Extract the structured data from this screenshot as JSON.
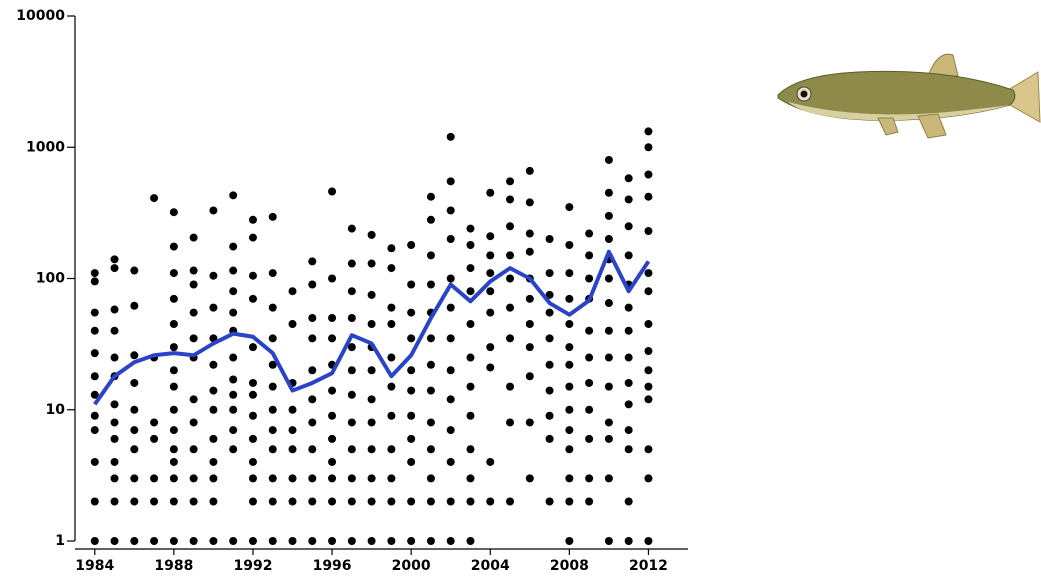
{
  "chart_data": {
    "type": "scatter",
    "ylog": true,
    "point_color": "#000000",
    "xlim": [
      1983,
      2014
    ],
    "xticks": [
      1984,
      1988,
      1992,
      1996,
      2000,
      2004,
      2008,
      2012
    ],
    "ylim": [
      1,
      10000
    ],
    "yticks": [
      1,
      10,
      100,
      1000,
      10000
    ],
    "points": [
      {
        "x": 1984,
        "values": [
          1,
          2,
          4,
          7,
          9,
          13,
          18,
          27,
          40,
          55,
          95,
          110
        ]
      },
      {
        "x": 1985,
        "values": [
          1,
          2,
          3,
          4,
          6,
          8,
          11,
          18,
          25,
          40,
          58,
          120,
          140
        ]
      },
      {
        "x": 1986,
        "values": [
          1,
          2,
          3,
          5,
          7,
          10,
          16,
          26,
          62,
          115
        ]
      },
      {
        "x": 1987,
        "values": [
          1,
          2,
          3,
          6,
          8,
          25,
          410
        ]
      },
      {
        "x": 1988,
        "values": [
          1,
          2,
          3,
          4,
          5,
          7,
          10,
          15,
          20,
          30,
          45,
          70,
          110,
          175,
          320
        ]
      },
      {
        "x": 1989,
        "values": [
          1,
          2,
          3,
          5,
          8,
          12,
          25,
          35,
          55,
          90,
          115,
          205
        ]
      },
      {
        "x": 1990,
        "values": [
          1,
          2,
          3,
          4,
          6,
          10,
          14,
          22,
          35,
          60,
          105,
          330
        ]
      },
      {
        "x": 1991,
        "values": [
          1,
          5,
          7,
          10,
          13,
          17,
          25,
          40,
          55,
          80,
          115,
          175,
          430
        ]
      },
      {
        "x": 1992,
        "values": [
          1,
          2,
          3,
          4,
          6,
          9,
          13,
          16,
          30,
          70,
          105,
          205,
          280
        ]
      },
      {
        "x": 1993,
        "values": [
          1,
          2,
          3,
          5,
          7,
          10,
          15,
          22,
          35,
          60,
          110,
          295
        ]
      },
      {
        "x": 1994,
        "values": [
          1,
          2,
          3,
          5,
          7,
          10,
          16,
          45,
          80
        ]
      },
      {
        "x": 1995,
        "values": [
          1,
          2,
          3,
          5,
          8,
          12,
          20,
          35,
          50,
          90,
          135
        ]
      },
      {
        "x": 1996,
        "values": [
          1,
          2,
          3,
          4,
          6,
          9,
          14,
          22,
          35,
          50,
          100,
          460
        ]
      },
      {
        "x": 1997,
        "values": [
          1,
          2,
          3,
          5,
          8,
          13,
          20,
          30,
          50,
          80,
          130,
          240
        ]
      },
      {
        "x": 1998,
        "values": [
          1,
          2,
          3,
          5,
          8,
          12,
          20,
          30,
          45,
          75,
          130,
          215
        ]
      },
      {
        "x": 1999,
        "values": [
          1,
          2,
          3,
          5,
          9,
          15,
          25,
          45,
          60,
          120,
          170
        ]
      },
      {
        "x": 2000,
        "values": [
          1,
          2,
          4,
          6,
          9,
          14,
          20,
          35,
          55,
          90,
          180
        ]
      },
      {
        "x": 2001,
        "values": [
          1,
          2,
          3,
          5,
          8,
          14,
          22,
          35,
          55,
          90,
          150,
          280,
          420
        ]
      },
      {
        "x": 2002,
        "values": [
          1,
          2,
          4,
          7,
          12,
          20,
          35,
          60,
          100,
          200,
          330,
          550,
          1200
        ]
      },
      {
        "x": 2003,
        "values": [
          1,
          2,
          3,
          5,
          9,
          15,
          25,
          45,
          80,
          120,
          180,
          240
        ]
      },
      {
        "x": 2004,
        "values": [
          2,
          4,
          21,
          30,
          55,
          80,
          110,
          150,
          210,
          450
        ]
      },
      {
        "x": 2005,
        "values": [
          2,
          8,
          15,
          35,
          60,
          100,
          150,
          250,
          400,
          550
        ]
      },
      {
        "x": 2006,
        "values": [
          3,
          8,
          18,
          30,
          45,
          70,
          100,
          160,
          220,
          380,
          660
        ]
      },
      {
        "x": 2007,
        "values": [
          2,
          6,
          9,
          14,
          22,
          35,
          55,
          75,
          110,
          200
        ]
      },
      {
        "x": 2008,
        "values": [
          1,
          2,
          3,
          5,
          7,
          10,
          15,
          22,
          30,
          45,
          70,
          110,
          180,
          350
        ]
      },
      {
        "x": 2009,
        "values": [
          2,
          3,
          6,
          10,
          16,
          25,
          40,
          70,
          100,
          150,
          220
        ]
      },
      {
        "x": 2010,
        "values": [
          1,
          3,
          6,
          8,
          15,
          25,
          40,
          65,
          100,
          140,
          200,
          300,
          450,
          800
        ]
      },
      {
        "x": 2011,
        "values": [
          1,
          2,
          5,
          7,
          11,
          16,
          25,
          40,
          60,
          90,
          150,
          250,
          400,
          580
        ]
      },
      {
        "x": 2012,
        "values": [
          1,
          3,
          5,
          12,
          15,
          20,
          28,
          45,
          80,
          110,
          230,
          420,
          620,
          1000,
          1320
        ]
      }
    ],
    "trend": {
      "color": "#2a44c8",
      "x": [
        1984,
        1985,
        1986,
        1987,
        1988,
        1989,
        1990,
        1991,
        1992,
        1993,
        1994,
        1995,
        1996,
        1997,
        1998,
        1999,
        2000,
        2001,
        2002,
        2003,
        2004,
        2005,
        2006,
        2007,
        2008,
        2009,
        2010,
        2011,
        2012
      ],
      "values": [
        11,
        18,
        23,
        26,
        27,
        26,
        32,
        38,
        36,
        27,
        14,
        16,
        19,
        37,
        32,
        18,
        26,
        50,
        90,
        67,
        95,
        120,
        100,
        65,
        53,
        68,
        160,
        80,
        135
      ]
    }
  }
}
